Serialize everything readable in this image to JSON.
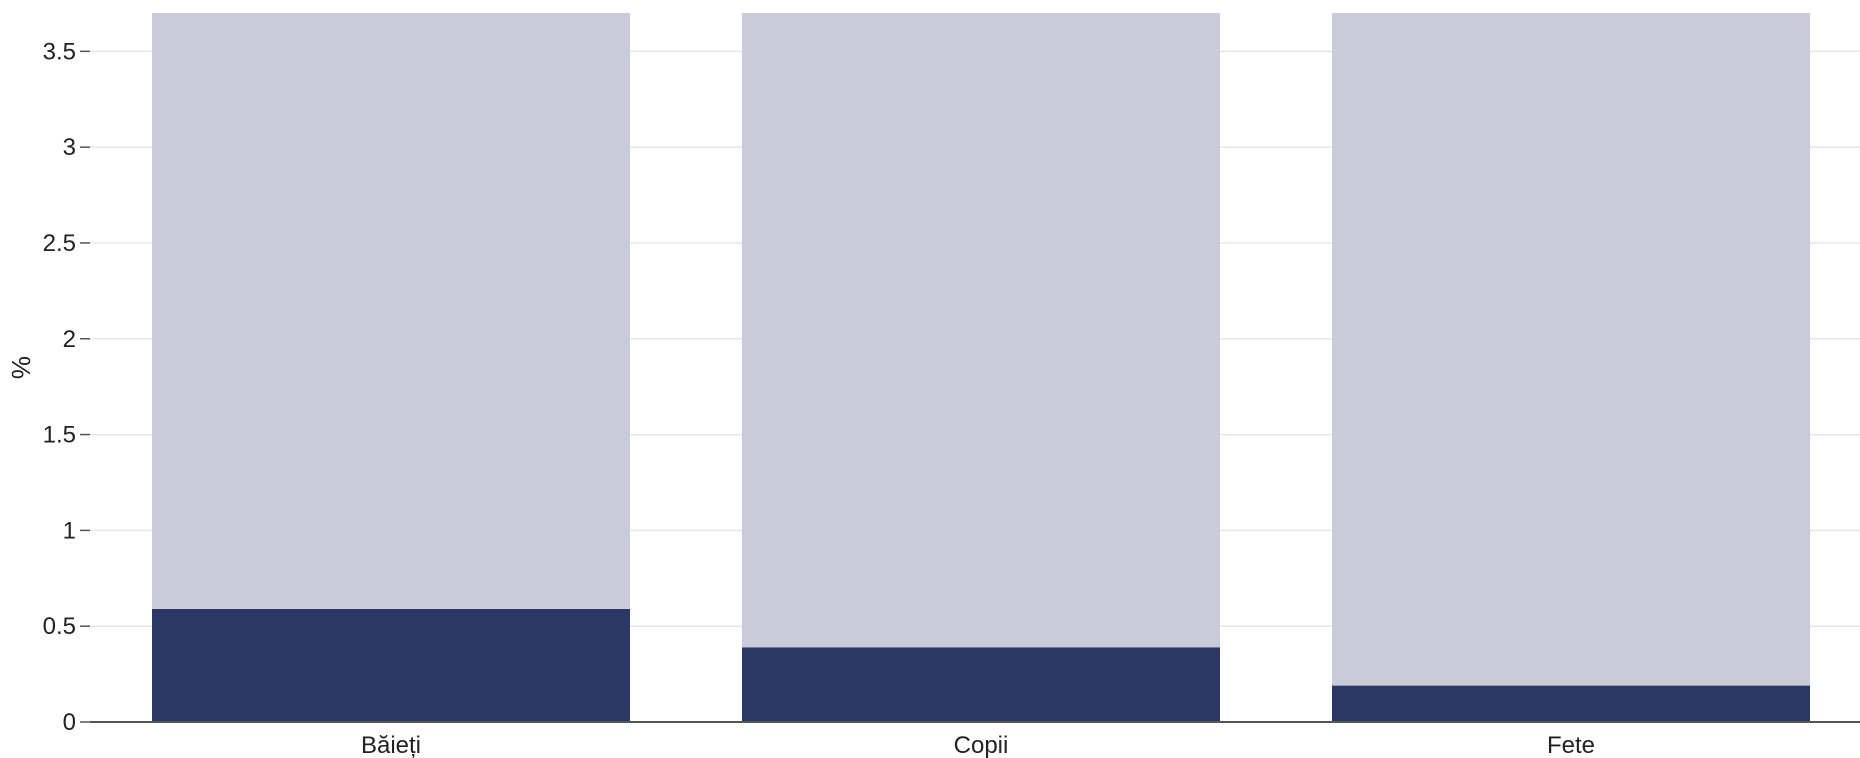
{
  "chart_data": {
    "type": "bar",
    "stacked": true,
    "title": "",
    "xlabel": "",
    "ylabel": "%",
    "ylim": [
      0,
      3.7
    ],
    "yticks": [
      0,
      0.5,
      1,
      1.5,
      2,
      2.5,
      3,
      3.5
    ],
    "ytick_labels": [
      "0",
      "0.5",
      "1",
      "1.5",
      "2",
      "2.5",
      "3",
      "3.5"
    ],
    "categories": [
      "Băieți",
      "Copii",
      "Fete"
    ],
    "series": [
      {
        "values": [
          0.59,
          0.39,
          0.19
        ],
        "color": "#2b3764"
      },
      {
        "values": [
          3.11,
          3.31,
          3.51
        ],
        "color": "#c9ccd8"
      }
    ],
    "grid": true,
    "gridline_color": "#e6e6e6",
    "axis_color": "#555555",
    "legend": "none"
  }
}
